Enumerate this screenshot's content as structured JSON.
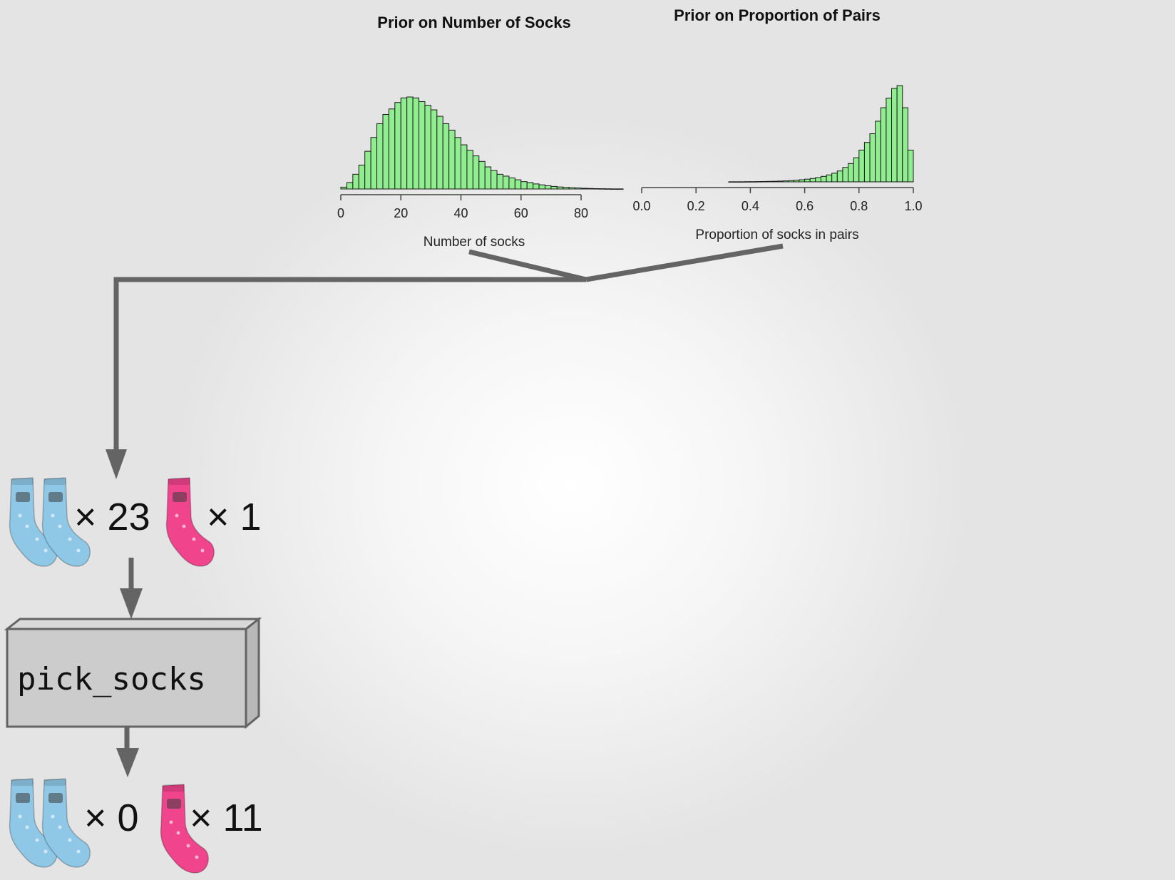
{
  "colors": {
    "bar_fill": "#90ee90",
    "bar_stroke": "#1a1a1a",
    "arrow": "#646464",
    "box_fill": "#cccccc",
    "box_stroke": "#646464",
    "blue_sock": "#8fc8e6",
    "pink_sock": "#f0448c"
  },
  "chart_data": [
    {
      "type": "bar",
      "title": "Prior on Number of Socks",
      "xlabel": "Number of socks",
      "ylabel": "",
      "xlim": [
        0,
        94
      ],
      "ylim": [
        0,
        1
      ],
      "xticks": [
        "0",
        "20",
        "40",
        "60",
        "80"
      ],
      "bin_width": 2,
      "bin_starts": [
        0,
        2,
        4,
        6,
        8,
        10,
        12,
        14,
        16,
        18,
        20,
        22,
        24,
        26,
        28,
        30,
        32,
        34,
        36,
        38,
        40,
        42,
        44,
        46,
        48,
        50,
        52,
        54,
        56,
        58,
        60,
        62,
        64,
        66,
        68,
        70,
        72,
        74,
        76,
        78,
        80,
        82,
        84,
        86,
        88,
        90,
        92
      ],
      "values": [
        0.02,
        0.07,
        0.16,
        0.26,
        0.41,
        0.56,
        0.71,
        0.81,
        0.87,
        0.94,
        0.99,
        1.0,
        0.99,
        0.95,
        0.91,
        0.86,
        0.79,
        0.71,
        0.64,
        0.56,
        0.48,
        0.42,
        0.36,
        0.3,
        0.24,
        0.2,
        0.16,
        0.14,
        0.12,
        0.1,
        0.08,
        0.07,
        0.055,
        0.045,
        0.035,
        0.028,
        0.022,
        0.018,
        0.014,
        0.011,
        0.008,
        0.006,
        0.004,
        0.003,
        0.002,
        0.001,
        0.001
      ],
      "grid": false
    },
    {
      "type": "bar",
      "title": "Prior on Proportion of Pairs",
      "xlabel": "Proportion of socks in pairs",
      "ylabel": "",
      "xlim": [
        0,
        1
      ],
      "ylim": [
        0,
        1
      ],
      "xticks": [
        "0.0",
        "0.2",
        "0.4",
        "0.6",
        "0.8",
        "1.0"
      ],
      "bin_width": 0.02,
      "bin_starts": [
        0.32,
        0.34,
        0.36,
        0.38,
        0.4,
        0.42,
        0.44,
        0.46,
        0.48,
        0.5,
        0.52,
        0.54,
        0.56,
        0.58,
        0.6,
        0.62,
        0.64,
        0.66,
        0.68,
        0.7,
        0.72,
        0.74,
        0.76,
        0.78,
        0.8,
        0.82,
        0.84,
        0.86,
        0.88,
        0.9,
        0.92,
        0.94,
        0.96,
        0.98
      ],
      "values": [
        0.001,
        0.001,
        0.001,
        0.002,
        0.002,
        0.003,
        0.004,
        0.005,
        0.006,
        0.008,
        0.01,
        0.013,
        0.017,
        0.022,
        0.028,
        0.035,
        0.045,
        0.057,
        0.072,
        0.09,
        0.113,
        0.15,
        0.19,
        0.25,
        0.33,
        0.41,
        0.5,
        0.63,
        0.77,
        0.87,
        0.97,
        1.0,
        0.77,
        0.33
      ],
      "grid": false
    }
  ],
  "input_socks": {
    "paired_count": "× 23",
    "odd_count": "× 1"
  },
  "process_box": {
    "label": "pick_socks"
  },
  "output_socks": {
    "paired_count": "× 0",
    "odd_count": "× 11"
  }
}
